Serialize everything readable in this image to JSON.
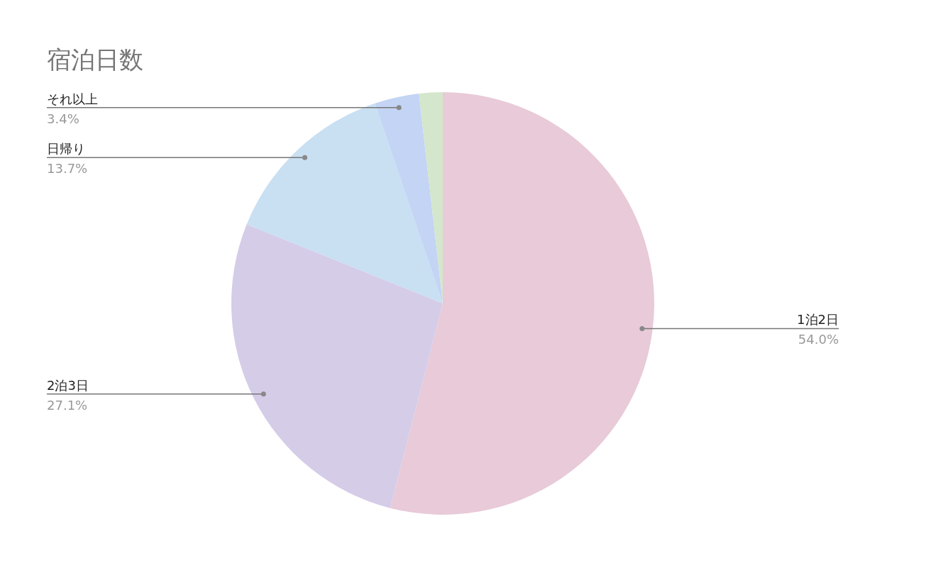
{
  "chart_data": {
    "type": "pie",
    "title": "宿泊日数",
    "categories": [
      "1泊2日",
      "2泊3日",
      "日帰り",
      "それ以上",
      null
    ],
    "values": [
      54.0,
      27.1,
      13.7,
      3.4,
      1.8
    ],
    "colors": [
      "#e8cad8",
      "#d5cce8",
      "#c9dff2",
      "#c3d4f4",
      "#d4e6cc"
    ],
    "value_labels": [
      "54.0%",
      "27.1%",
      "13.7%",
      "3.4%",
      null
    ]
  }
}
